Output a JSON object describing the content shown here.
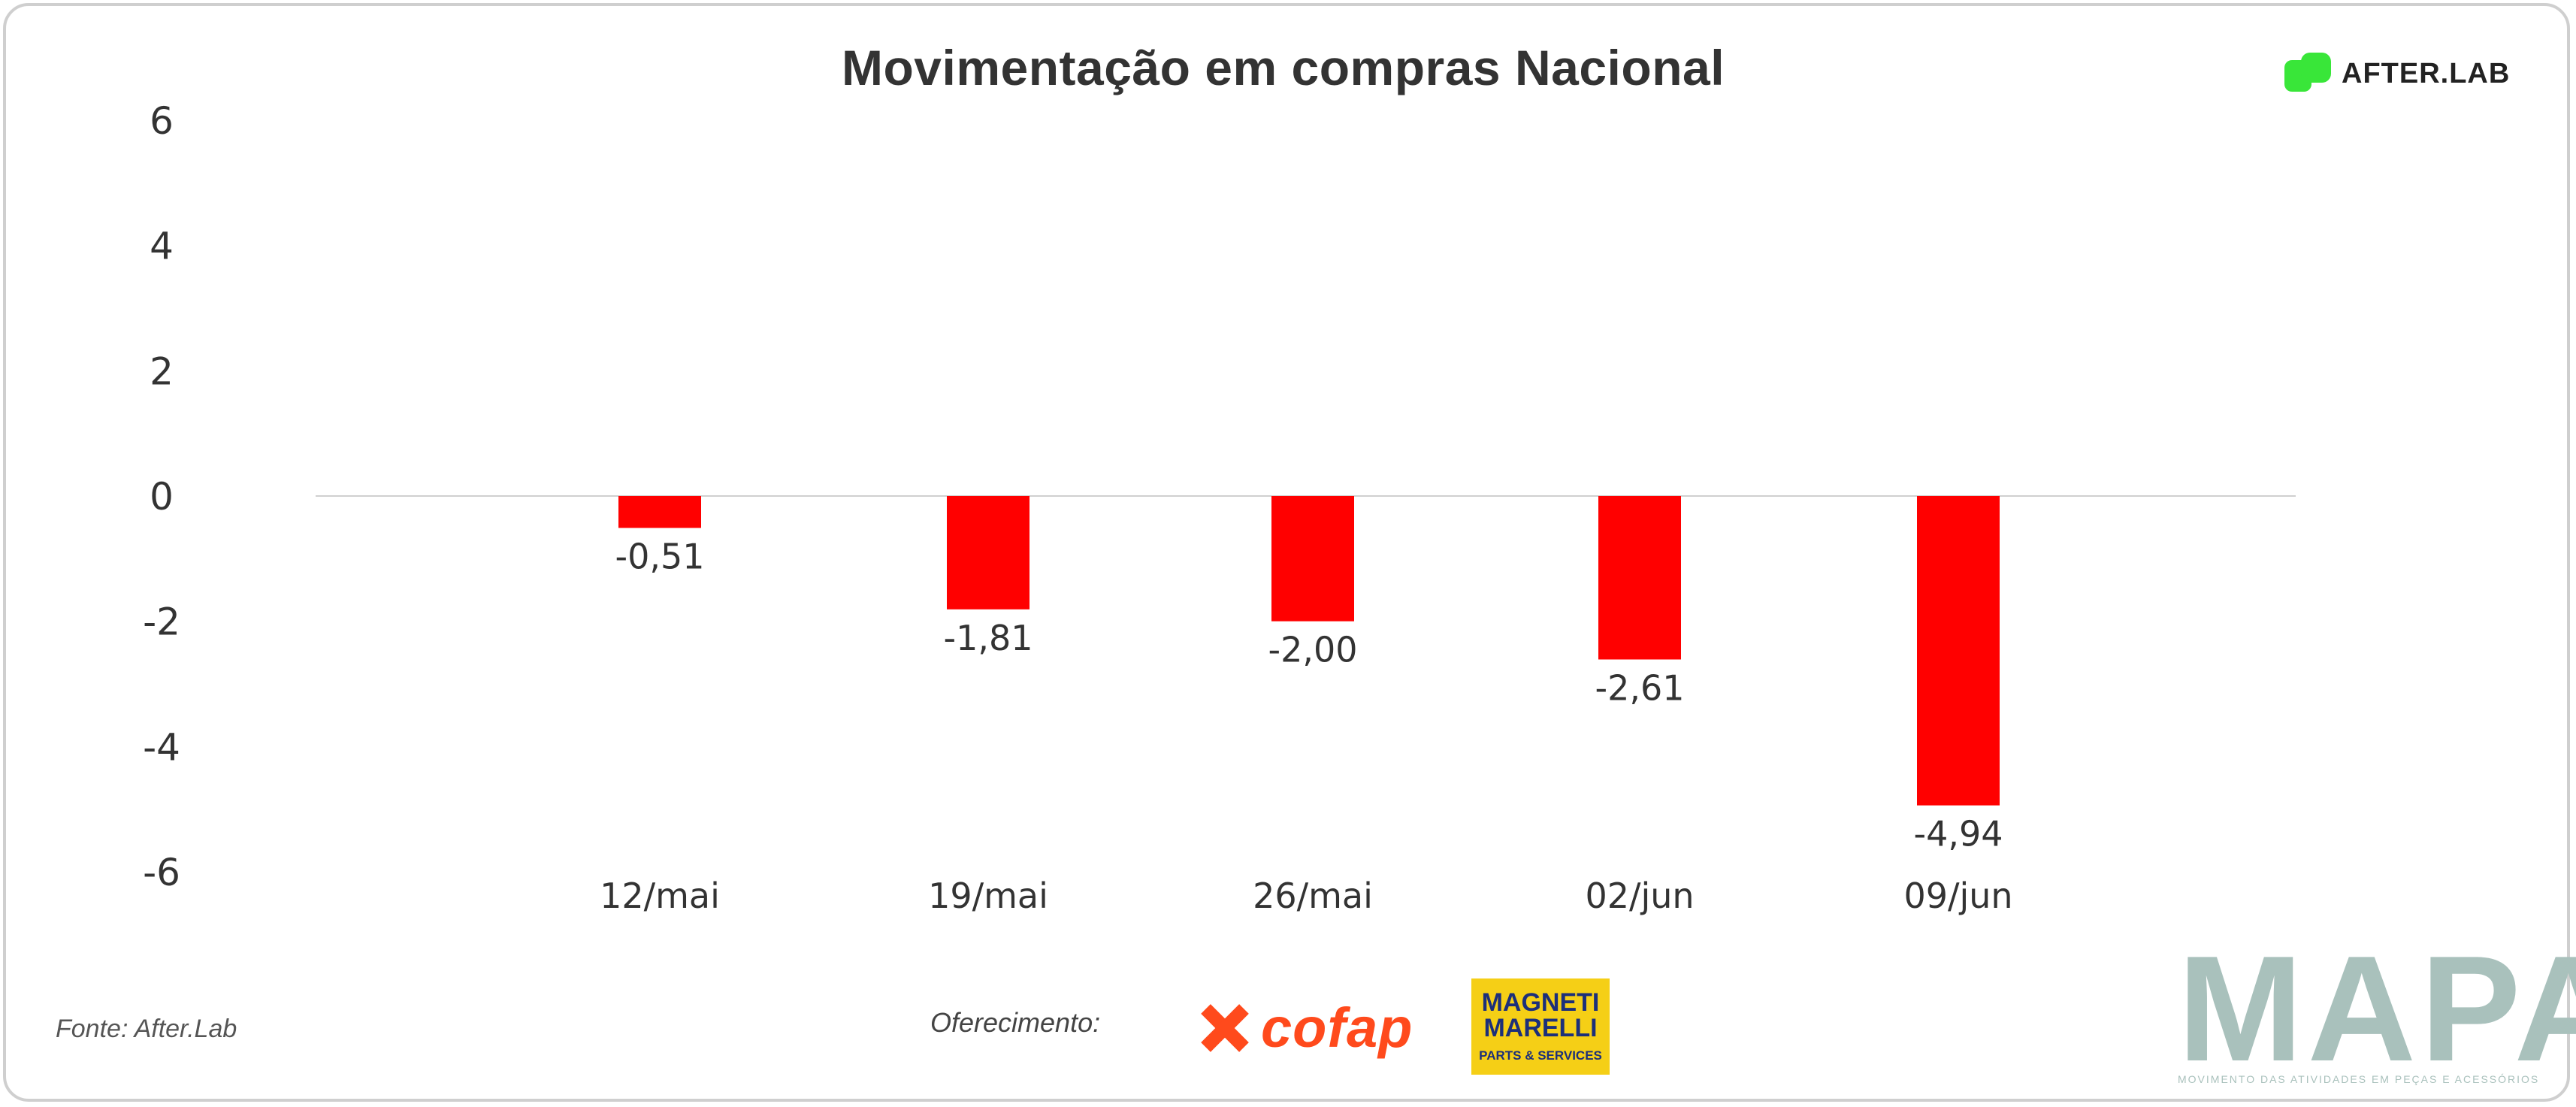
{
  "chart_data": {
    "type": "bar",
    "title": "Movimentação em compras Nacional",
    "categories": [
      "12/mai",
      "19/mai",
      "26/mai",
      "02/jun",
      "09/jun"
    ],
    "series": [
      {
        "values": [
          -0.51,
          -1.81,
          -2.0,
          -2.61,
          -4.94
        ],
        "labels": [
          "-0,51",
          "-1,81",
          "-2,00",
          "-2,61",
          "-4,94"
        ]
      }
    ],
    "yticks": [
      "6",
      "4",
      "2",
      "0",
      "-2",
      "-4",
      "-6"
    ],
    "ylim": [
      -6,
      6
    ],
    "xlabel": "",
    "ylabel": "",
    "grid": false,
    "bar_color": "#ff0000",
    "baseline_color": "#d0d0d0"
  },
  "branding": {
    "afterlab": "AFTER.LAB",
    "source": "Fonte: After.Lab",
    "sponsor_label": "Oferecimento:",
    "cofap": "cofap",
    "magneti_top": "MAGNETI MARELLI",
    "magneti_bottom": "PARTS & SERVICES",
    "mapa": "MAPA",
    "mapa_subtitle": "MOVIMENTO DAS ATIVIDADES EM PEÇAS E ACESSÓRIOS"
  }
}
